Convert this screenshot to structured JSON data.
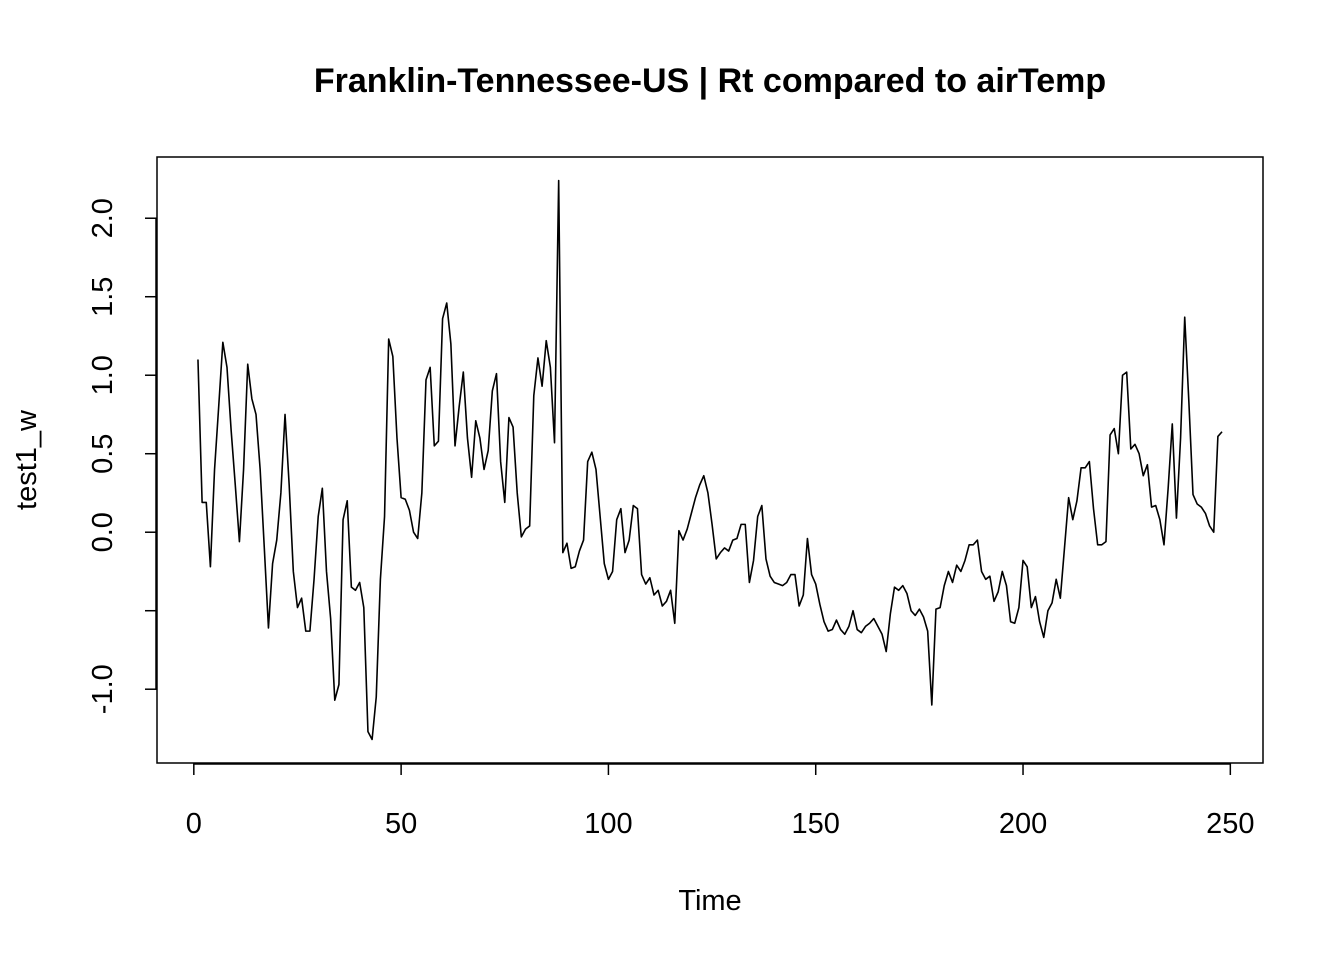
{
  "chart_data": {
    "type": "line",
    "title": "Franklin-Tennessee-US | Rt compared to airTemp",
    "x_label": "Time",
    "y_label": "test1_w",
    "x": [
      1,
      2,
      3,
      4,
      5,
      6,
      7,
      8,
      9,
      10,
      11,
      12,
      13,
      14,
      15,
      16,
      17,
      18,
      19,
      20,
      21,
      22,
      23,
      24,
      25,
      26,
      27,
      28,
      29,
      30,
      31,
      32,
      33,
      34,
      35,
      36,
      37,
      38,
      39,
      40,
      41,
      42,
      43,
      44,
      45,
      46,
      47,
      48,
      49,
      50,
      51,
      52,
      53,
      54,
      55,
      56,
      57,
      58,
      59,
      60,
      61,
      62,
      63,
      64,
      65,
      66,
      67,
      68,
      69,
      70,
      71,
      72,
      73,
      74,
      75,
      76,
      77,
      78,
      79,
      80,
      81,
      82,
      83,
      84,
      85,
      86,
      87,
      88,
      89,
      90,
      91,
      92,
      93,
      94,
      95,
      96,
      97,
      98,
      99,
      100,
      101,
      102,
      103,
      104,
      105,
      106,
      107,
      108,
      109,
      110,
      111,
      112,
      113,
      114,
      115,
      116,
      117,
      118,
      119,
      120,
      121,
      122,
      123,
      124,
      125,
      126,
      127,
      128,
      129,
      130,
      131,
      132,
      133,
      134,
      135,
      136,
      137,
      138,
      139,
      140,
      141,
      142,
      143,
      144,
      145,
      146,
      147,
      148,
      149,
      150,
      151,
      152,
      153,
      154,
      155,
      156,
      157,
      158,
      159,
      160,
      161,
      162,
      163,
      164,
      165,
      166,
      167,
      168,
      169,
      170,
      171,
      172,
      173,
      174,
      175,
      176,
      177,
      178,
      179,
      180,
      181,
      182,
      183,
      184,
      185,
      186,
      187,
      188,
      189,
      190,
      191,
      192,
      193,
      194,
      195,
      196,
      197,
      198,
      199,
      200,
      201,
      202,
      203,
      204,
      205,
      206,
      207,
      208,
      209,
      210,
      211,
      212,
      213,
      214,
      215,
      216,
      217,
      218,
      219,
      220,
      221,
      222,
      223,
      224,
      225,
      226,
      227,
      228,
      229,
      230,
      231,
      232,
      233,
      234,
      235,
      236,
      237,
      238,
      239,
      240,
      241,
      242,
      243,
      244,
      245,
      246,
      247,
      248
    ],
    "series": [
      {
        "color": "#000000",
        "values": [
          1.1,
          0.19,
          0.19,
          -0.22,
          0.4,
          0.8,
          1.21,
          1.05,
          0.65,
          0.3,
          -0.06,
          0.4,
          1.07,
          0.85,
          0.75,
          0.4,
          -0.1,
          -0.61,
          -0.2,
          -0.05,
          0.25,
          0.75,
          0.3,
          -0.25,
          -0.48,
          -0.42,
          -0.63,
          -0.63,
          -0.3,
          0.1,
          0.28,
          -0.25,
          -0.55,
          -1.07,
          -0.97,
          0.08,
          0.2,
          -0.35,
          -0.37,
          -0.32,
          -0.48,
          -1.27,
          -1.32,
          -1.05,
          -0.3,
          0.1,
          1.23,
          1.12,
          0.6,
          0.22,
          0.21,
          0.14,
          0.0,
          -0.04,
          0.25,
          0.97,
          1.05,
          0.55,
          0.58,
          1.36,
          1.46,
          1.2,
          0.55,
          0.8,
          1.02,
          0.6,
          0.35,
          0.71,
          0.6,
          0.4,
          0.52,
          0.9,
          1.01,
          0.45,
          0.19,
          0.73,
          0.67,
          0.25,
          -0.03,
          0.02,
          0.04,
          0.87,
          1.11,
          0.93,
          1.22,
          1.05,
          0.57,
          2.24,
          -0.13,
          -0.07,
          -0.23,
          -0.22,
          -0.12,
          -0.05,
          0.45,
          0.51,
          0.4,
          0.1,
          -0.2,
          -0.3,
          -0.25,
          0.08,
          0.15,
          -0.13,
          -0.05,
          0.17,
          0.15,
          -0.27,
          -0.33,
          -0.29,
          -0.4,
          -0.37,
          -0.47,
          -0.44,
          -0.37,
          -0.58,
          0.01,
          -0.05,
          0.02,
          0.12,
          0.22,
          0.3,
          0.36,
          0.25,
          0.05,
          -0.17,
          -0.13,
          -0.1,
          -0.12,
          -0.05,
          -0.04,
          0.05,
          0.05,
          -0.32,
          -0.18,
          0.1,
          0.17,
          -0.17,
          -0.28,
          -0.32,
          -0.33,
          -0.34,
          -0.32,
          -0.27,
          -0.27,
          -0.47,
          -0.4,
          -0.04,
          -0.27,
          -0.33,
          -0.46,
          -0.57,
          -0.63,
          -0.62,
          -0.56,
          -0.62,
          -0.65,
          -0.6,
          -0.5,
          -0.62,
          -0.64,
          -0.6,
          -0.58,
          -0.55,
          -0.6,
          -0.65,
          -0.76,
          -0.52,
          -0.35,
          -0.37,
          -0.34,
          -0.39,
          -0.5,
          -0.53,
          -0.49,
          -0.54,
          -0.63,
          -1.1,
          -0.49,
          -0.48,
          -0.34,
          -0.25,
          -0.32,
          -0.21,
          -0.25,
          -0.18,
          -0.08,
          -0.08,
          -0.05,
          -0.25,
          -0.3,
          -0.28,
          -0.44,
          -0.38,
          -0.25,
          -0.34,
          -0.57,
          -0.58,
          -0.48,
          -0.18,
          -0.22,
          -0.48,
          -0.41,
          -0.57,
          -0.67,
          -0.5,
          -0.45,
          -0.3,
          -0.42,
          -0.1,
          0.22,
          0.08,
          0.2,
          0.41,
          0.41,
          0.45,
          0.15,
          -0.08,
          -0.08,
          -0.06,
          0.62,
          0.66,
          0.5,
          1.0,
          1.02,
          0.53,
          0.56,
          0.5,
          0.36,
          0.43,
          0.16,
          0.17,
          0.08,
          -0.08,
          0.28,
          0.69,
          0.09,
          0.6,
          1.37,
          0.83,
          0.24,
          0.18,
          0.16,
          0.12,
          0.04,
          0.0,
          0.61,
          0.64
        ]
      }
    ],
    "xlim": [
      -8.88,
      257.88
    ],
    "xticks": [
      0,
      50,
      100,
      150,
      200,
      250
    ],
    "ylim": [
      -1.47,
      2.39
    ],
    "yticks": [
      {
        "value": -1,
        "label": "-1.0"
      },
      {
        "value": -0.5,
        "label": null
      },
      {
        "value": 0,
        "label": "0.0"
      },
      0.5,
      {
        "value": 1,
        "label": "1.0"
      },
      1.5,
      {
        "value": 2,
        "label": "2.0"
      }
    ]
  }
}
